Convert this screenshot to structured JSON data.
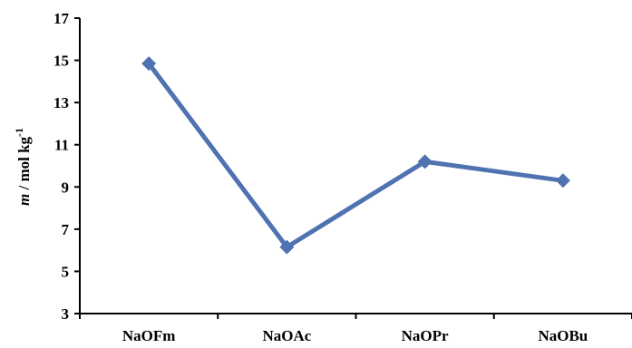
{
  "chart_data": {
    "type": "line",
    "categories": [
      "NaOFm",
      "NaOAc",
      "NaOPr",
      "NaOBu"
    ],
    "series": [
      {
        "values": [
          14.85,
          6.15,
          10.2,
          9.3
        ]
      }
    ],
    "ylabel": {
      "italic": "m",
      "text": " / mol kg",
      "superscript": "-1"
    },
    "ylim": [
      3,
      17
    ],
    "yticks": [
      3,
      5,
      7,
      9,
      11,
      13,
      15,
      17
    ],
    "grid": false,
    "legend": "none",
    "line_color": "#4f72b1",
    "marker": "diamond"
  }
}
